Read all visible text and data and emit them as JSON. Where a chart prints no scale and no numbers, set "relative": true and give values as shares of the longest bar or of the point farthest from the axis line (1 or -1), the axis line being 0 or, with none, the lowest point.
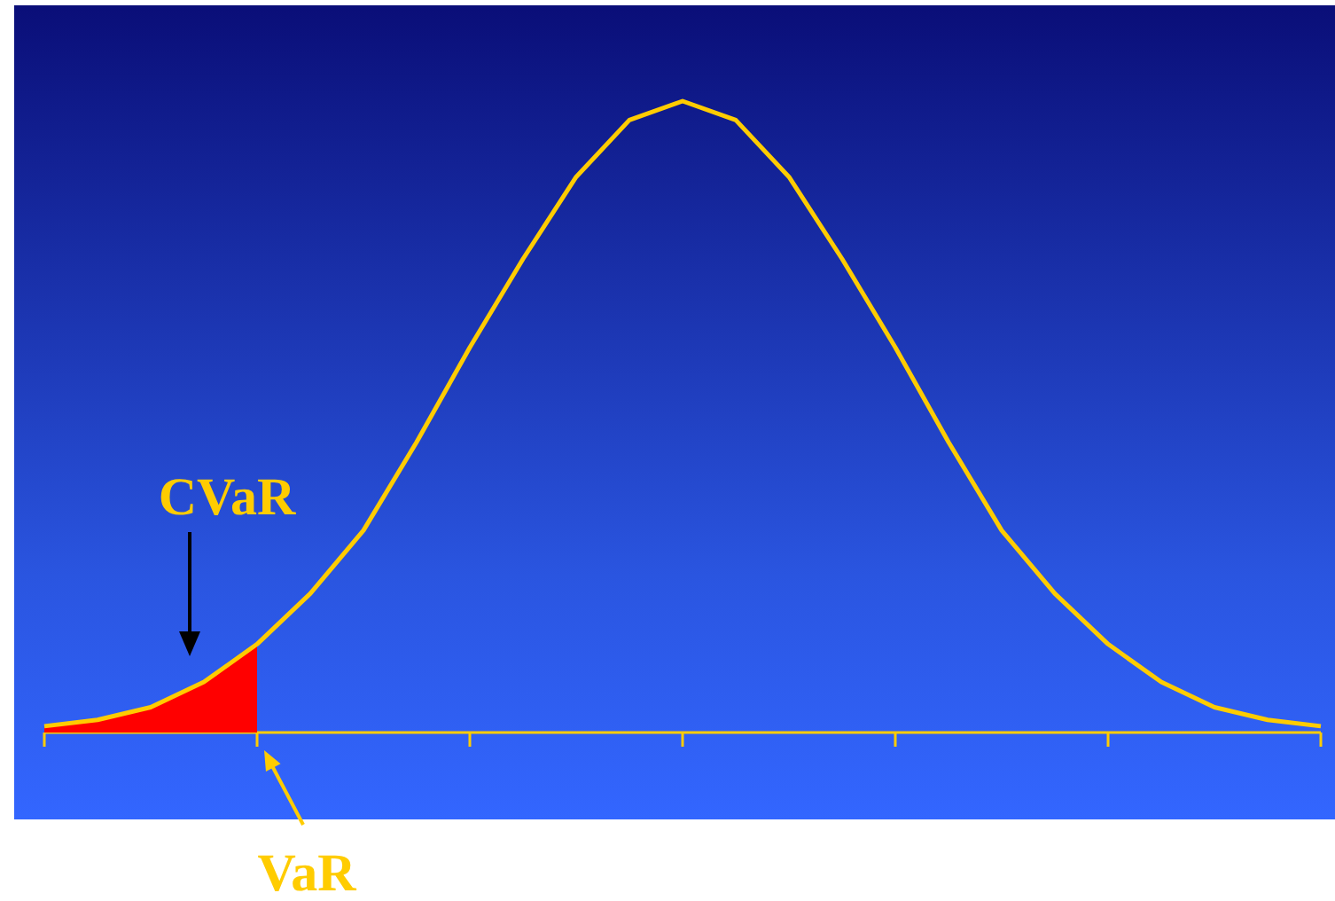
{
  "chart_data": {
    "type": "line",
    "relative": true,
    "legend": false,
    "marker": "none",
    "categories": [
      null,
      null,
      null,
      null,
      null,
      null,
      null,
      null,
      null,
      null,
      null,
      null,
      null,
      null,
      null,
      null,
      null,
      null,
      null,
      null,
      null,
      null,
      null,
      null,
      null
    ],
    "series": [
      {
        "color": "#ffcc00",
        "values": [
          0.01,
          0.02,
          0.04,
          0.08,
          0.14,
          0.22,
          0.32,
          0.46,
          0.61,
          0.75,
          0.88,
          0.97,
          1,
          0.97,
          0.88,
          0.75,
          0.61,
          0.46,
          0.32,
          0.22,
          0.14,
          0.08,
          0.04,
          0.02,
          0.01
        ]
      },
      {
        "type": "area",
        "color": "#ff0000",
        "values": [
          0.01,
          0.02,
          0.04,
          0.08,
          0.14,
          null,
          null,
          null,
          null,
          null,
          null,
          null,
          null,
          null,
          null,
          null,
          null,
          null,
          null,
          null,
          null,
          null,
          null,
          null,
          null
        ]
      }
    ],
    "annotations": [
      "CVaR",
      "VaR"
    ]
  }
}
